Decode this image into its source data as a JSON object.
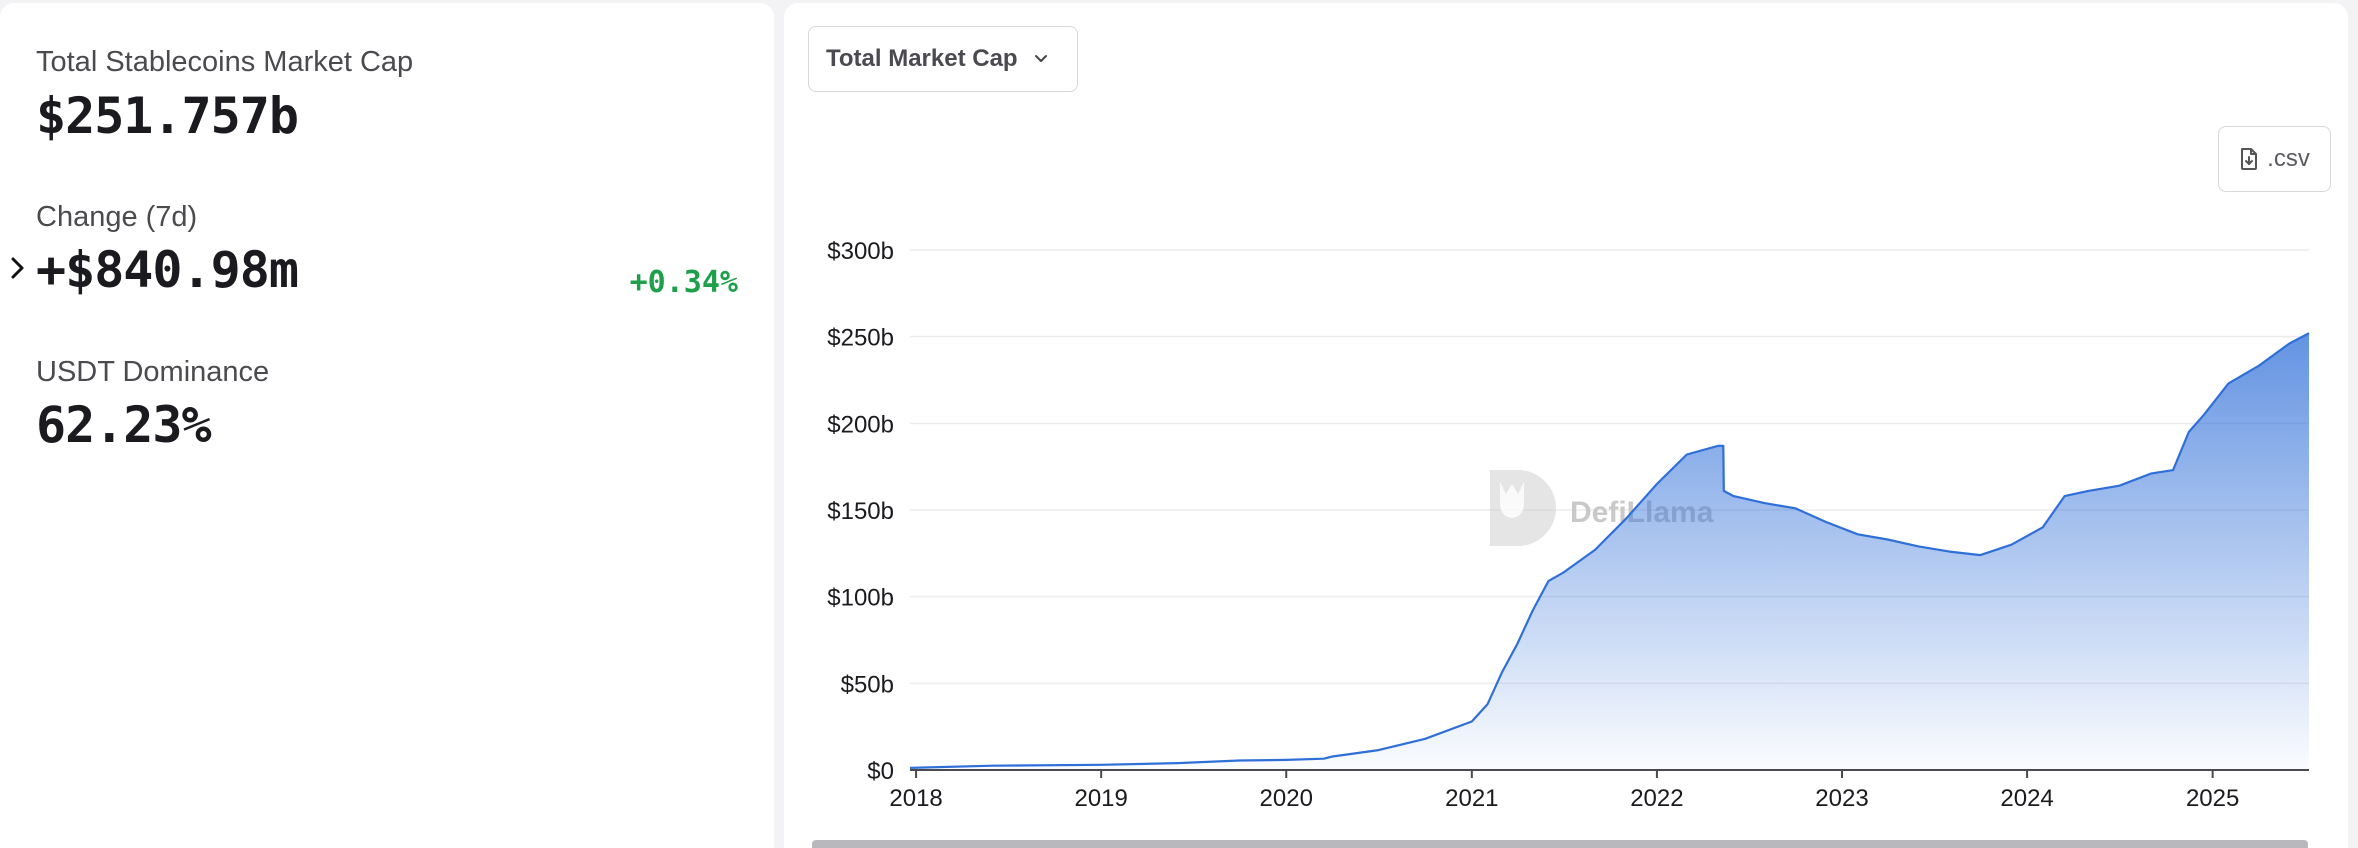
{
  "stats": {
    "market_cap": {
      "label": "Total Stablecoins Market Cap",
      "value": "$251.757b"
    },
    "change_7d": {
      "label": "Change (7d)",
      "value": "+$840.98m",
      "percent": "+0.34%"
    },
    "usdt_dominance": {
      "label": "USDT Dominance",
      "value": "62.23%"
    }
  },
  "controls": {
    "metric_select": "Total Market Cap",
    "csv_button": ".csv"
  },
  "watermark": "DefiLlama",
  "colors": {
    "accent": "#2f6fd8",
    "positive": "#1e9f4b"
  },
  "icons": {
    "expand": "chevron-right-icon",
    "select": "chevron-down-icon",
    "download": "file-download-icon"
  },
  "chart_data": {
    "type": "area",
    "title": "",
    "xlabel": "",
    "ylabel": "",
    "x_ticks": [
      "2018",
      "2019",
      "2020",
      "2021",
      "2022",
      "2023",
      "2024",
      "2025"
    ],
    "y_ticks": [
      "$0",
      "$50b",
      "$100b",
      "$150b",
      "$200b",
      "$250b",
      "$300b"
    ],
    "ylim": [
      0,
      300
    ],
    "xlim": [
      "2017-12-20",
      "2025-07-10"
    ],
    "grid": true,
    "series": [
      {
        "unit": "$b",
        "points": [
          [
            "2017-12-20",
            1.2
          ],
          [
            "2018-06-01",
            2.5
          ],
          [
            "2019-01-01",
            3.0
          ],
          [
            "2019-06-01",
            4.0
          ],
          [
            "2019-10-01",
            5.5
          ],
          [
            "2020-01-01",
            5.8
          ],
          [
            "2020-03-15",
            6.5
          ],
          [
            "2020-04-01",
            7.8
          ],
          [
            "2020-07-01",
            11.5
          ],
          [
            "2020-10-01",
            18
          ],
          [
            "2021-01-01",
            28
          ],
          [
            "2021-02-01",
            38
          ],
          [
            "2021-03-01",
            56
          ],
          [
            "2021-04-01",
            73
          ],
          [
            "2021-05-01",
            92
          ],
          [
            "2021-06-01",
            109
          ],
          [
            "2021-07-01",
            114
          ],
          [
            "2021-09-01",
            127
          ],
          [
            "2021-11-01",
            145
          ],
          [
            "2022-01-01",
            165
          ],
          [
            "2022-03-01",
            182
          ],
          [
            "2022-05-01",
            187
          ],
          [
            "2022-05-12",
            187
          ],
          [
            "2022-05-13",
            161
          ],
          [
            "2022-06-01",
            158
          ],
          [
            "2022-08-01",
            154
          ],
          [
            "2022-10-01",
            151
          ],
          [
            "2022-12-01",
            143
          ],
          [
            "2023-02-01",
            136
          ],
          [
            "2023-04-01",
            133
          ],
          [
            "2023-06-01",
            129
          ],
          [
            "2023-08-01",
            126
          ],
          [
            "2023-10-01",
            124
          ],
          [
            "2023-12-01",
            130
          ],
          [
            "2024-02-01",
            140
          ],
          [
            "2024-03-15",
            158
          ],
          [
            "2024-05-01",
            161
          ],
          [
            "2024-07-01",
            164
          ],
          [
            "2024-09-01",
            171
          ],
          [
            "2024-10-15",
            173
          ],
          [
            "2024-11-15",
            195
          ],
          [
            "2024-12-15",
            205
          ],
          [
            "2025-02-01",
            223
          ],
          [
            "2025-04-01",
            233
          ],
          [
            "2025-06-01",
            246
          ],
          [
            "2025-07-10",
            252
          ]
        ]
      }
    ]
  }
}
